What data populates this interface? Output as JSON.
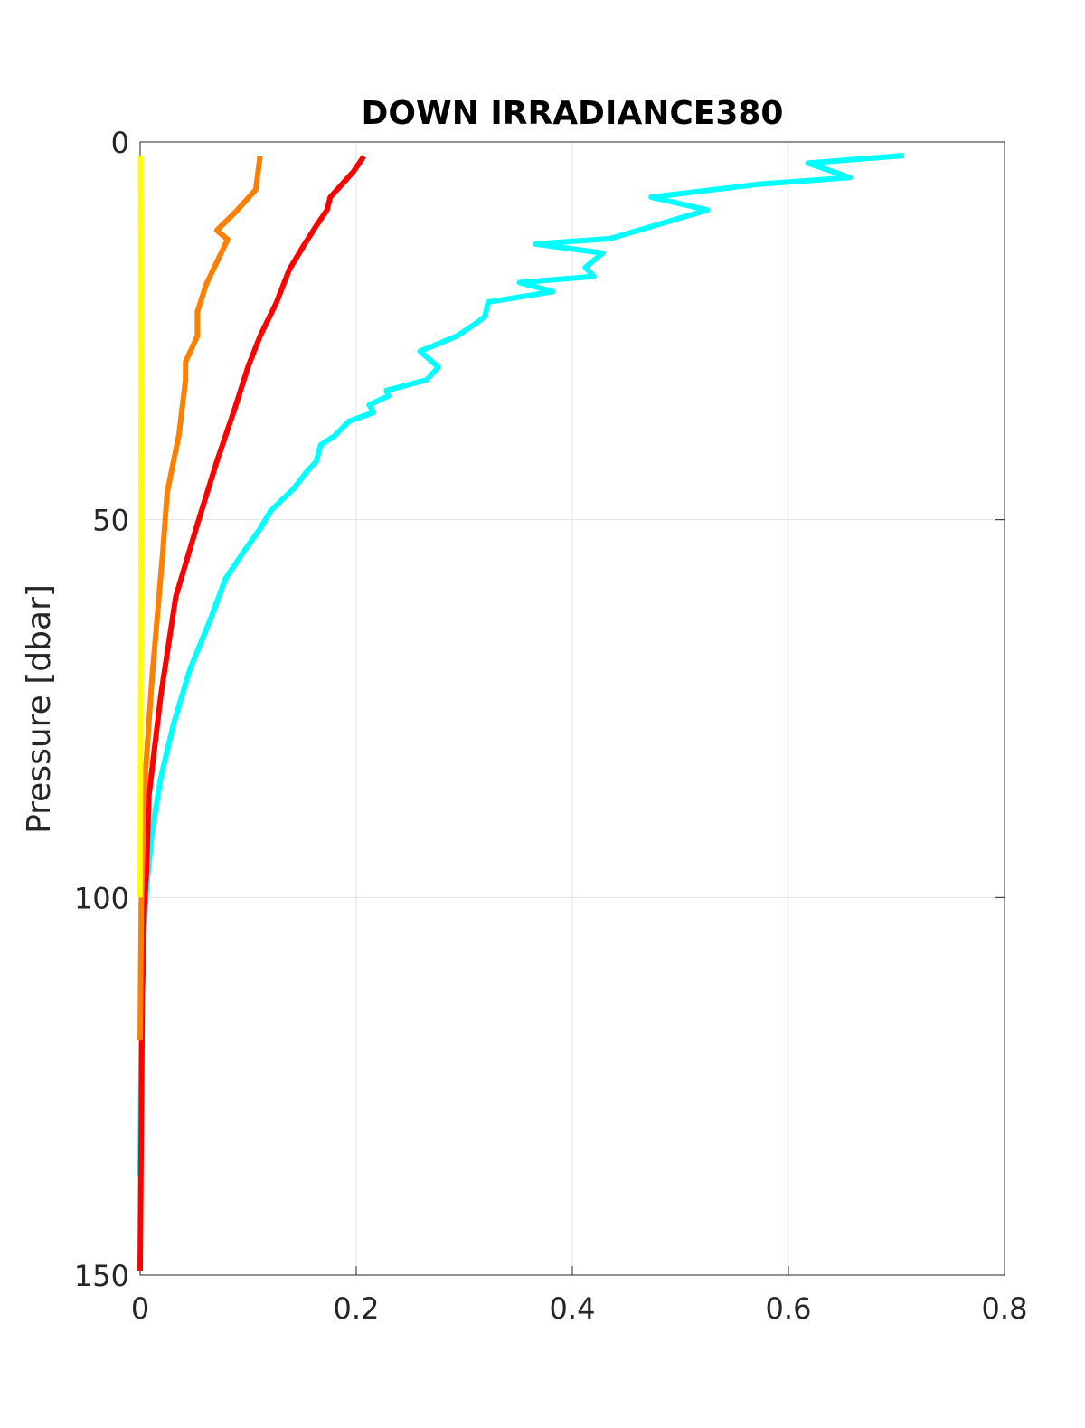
{
  "chart_data": {
    "type": "line",
    "title": "DOWN IRRADIANCE380",
    "ylabel": "Pressure [dbar]",
    "xlim": [
      0,
      0.8
    ],
    "xticks": [
      0,
      0.2,
      0.4,
      0.6,
      0.8
    ],
    "ylim": [
      0,
      150
    ],
    "yticks": [
      0,
      50,
      100,
      150
    ],
    "y_reversed": true,
    "grid": true,
    "series": [
      {
        "color": "#00ffff",
        "values": [
          0.707,
          0.618,
          0.657,
          0.572,
          0.473,
          0.525,
          0.435,
          0.366,
          0.428,
          0.412,
          0.42,
          0.351,
          0.382,
          0.322,
          0.319,
          0.31,
          0.293,
          0.259,
          0.276,
          0.265,
          0.228,
          0.23,
          0.212,
          0.216,
          0.193,
          0.18,
          0.167,
          0.163,
          0.155,
          0.142,
          0.121,
          0.111,
          0.096,
          0.079,
          0.065,
          0.046,
          0.031,
          0.019,
          0.011,
          0.006,
          0.003,
          0.001,
          0
        ],
        "pressure": [
          1.8,
          2.8,
          4.7,
          5.6,
          7.3,
          9.0,
          12.8,
          13.5,
          14.7,
          16.6,
          17.8,
          18.6,
          19.8,
          21.2,
          23.1,
          24.1,
          25.7,
          27.7,
          29.8,
          31.5,
          32.9,
          33.6,
          34.8,
          35.8,
          37.0,
          38.9,
          40.1,
          42.3,
          43.5,
          45.9,
          48.8,
          51.2,
          54.2,
          57.8,
          63.2,
          69.8,
          77.0,
          84.2,
          91.3,
          98.6,
          105.7,
          118.9,
          136.8
        ]
      },
      {
        "color": "#ff0000",
        "values": [
          0.207,
          0.197,
          0.176,
          0.173,
          0.163,
          0.151,
          0.138,
          0.126,
          0.111,
          0.1,
          0.088,
          0.071,
          0.053,
          0.033,
          0.019,
          0.008,
          0.006,
          0.004,
          0.002,
          0.001,
          0
        ],
        "pressure": [
          1.9,
          4.0,
          7.3,
          9.0,
          11.1,
          13.8,
          16.9,
          21.3,
          25.7,
          29.7,
          35.1,
          42.3,
          50.6,
          60.2,
          73.4,
          86.6,
          96.1,
          100.9,
          112.9,
          130.9,
          149.4
        ]
      },
      {
        "color": "#ff8000",
        "values": [
          0.111,
          0.107,
          0.088,
          0.071,
          0.081,
          0.071,
          0.061,
          0.053,
          0.053,
          0.042,
          0.042,
          0.036,
          0.025,
          0.021,
          0.011,
          0.004,
          0.001,
          0
        ],
        "pressure": [
          1.9,
          6.3,
          9.3,
          11.7,
          12.9,
          15.9,
          18.9,
          22.5,
          25.7,
          29.1,
          31.5,
          38.7,
          46.4,
          54.2,
          71.0,
          85.4,
          100.9,
          118.9
        ]
      },
      {
        "color": "#ffff00",
        "values": [
          0.0005,
          0.001,
          0
        ],
        "pressure": [
          1.9,
          50,
          100
        ]
      }
    ]
  }
}
